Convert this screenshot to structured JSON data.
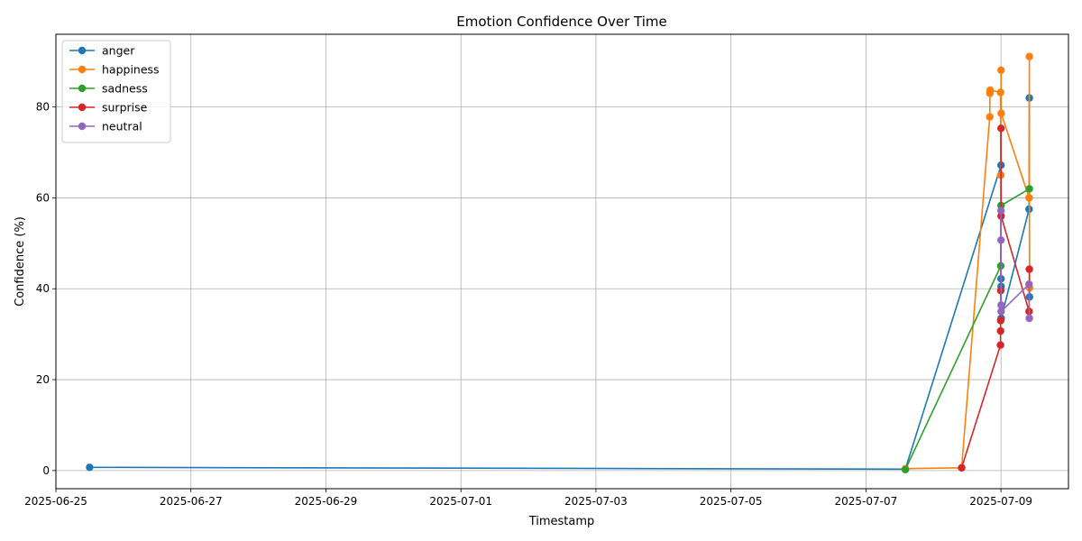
{
  "chart_data": {
    "type": "line",
    "title": "Emotion Confidence Over Time",
    "xlabel": "Timestamp",
    "ylabel": "Confidence (%)",
    "xlim": [
      "2025-06-25T00:00",
      "2025-07-10T00:00"
    ],
    "ylim": [
      -4,
      96
    ],
    "xticks": [
      "2025-06-25",
      "2025-06-27",
      "2025-06-29",
      "2025-07-01",
      "2025-07-03",
      "2025-07-05",
      "2025-07-07",
      "2025-07-09"
    ],
    "yticks": [
      0,
      20,
      40,
      60,
      80
    ],
    "grid": true,
    "legend_position": "upper-left",
    "series": [
      {
        "name": "anger",
        "color": "#1f77b4",
        "points": [
          [
            "2025-06-25T12:00",
            0.7
          ],
          [
            "2025-07-07T14:00",
            0.3
          ],
          [
            "2025-07-09T00:01",
            67.2
          ],
          [
            "2025-07-09T00:02",
            42.2
          ],
          [
            "2025-07-09T00:03",
            40.5
          ],
          [
            "2025-07-09T00:05",
            33.5
          ],
          [
            "2025-07-09T10:00",
            57.5
          ],
          [
            "2025-07-09T10:05",
            82.0
          ],
          [
            "2025-07-09T10:10",
            38.2
          ]
        ]
      },
      {
        "name": "happiness",
        "color": "#ff7f0e",
        "points": [
          [
            "2025-07-07T14:00",
            0.4
          ],
          [
            "2025-07-08T10:00",
            0.6
          ],
          [
            "2025-07-08T20:00",
            77.8
          ],
          [
            "2025-07-08T20:05",
            83.0
          ],
          [
            "2025-07-08T20:10",
            83.7
          ],
          [
            "2025-07-08T23:50",
            83.2
          ],
          [
            "2025-07-08T23:55",
            65.0
          ],
          [
            "2025-07-09T00:01",
            88.1
          ],
          [
            "2025-07-09T00:05",
            78.6
          ],
          [
            "2025-07-09T10:00",
            60.0
          ],
          [
            "2025-07-09T10:05",
            91.1
          ],
          [
            "2025-07-09T10:10",
            40.2
          ]
        ]
      },
      {
        "name": "sadness",
        "color": "#2ca02c",
        "points": [
          [
            "2025-07-07T14:00",
            0.2
          ],
          [
            "2025-07-08T23:55",
            45.0
          ],
          [
            "2025-07-09T00:01",
            58.3
          ],
          [
            "2025-07-09T10:05",
            62.0
          ]
        ]
      },
      {
        "name": "surprise",
        "color": "#d62728",
        "points": [
          [
            "2025-07-08T10:00",
            0.6
          ],
          [
            "2025-07-08T23:50",
            27.6
          ],
          [
            "2025-07-08T23:52",
            30.7
          ],
          [
            "2025-07-08T23:54",
            33.0
          ],
          [
            "2025-07-08T23:56",
            39.6
          ],
          [
            "2025-07-09T00:01",
            75.3
          ],
          [
            "2025-07-09T00:03",
            56.0
          ],
          [
            "2025-07-09T10:00",
            35.0
          ],
          [
            "2025-07-09T10:05",
            44.3
          ]
        ]
      },
      {
        "name": "neutral",
        "color": "#9467bd",
        "points": [
          [
            "2025-07-09T00:01",
            50.7
          ],
          [
            "2025-07-09T00:02",
            57.2
          ],
          [
            "2025-07-09T00:03",
            36.4
          ],
          [
            "2025-07-09T00:04",
            35.0
          ],
          [
            "2025-07-09T10:00",
            41.0
          ],
          [
            "2025-07-09T10:05",
            33.5
          ]
        ]
      }
    ]
  }
}
